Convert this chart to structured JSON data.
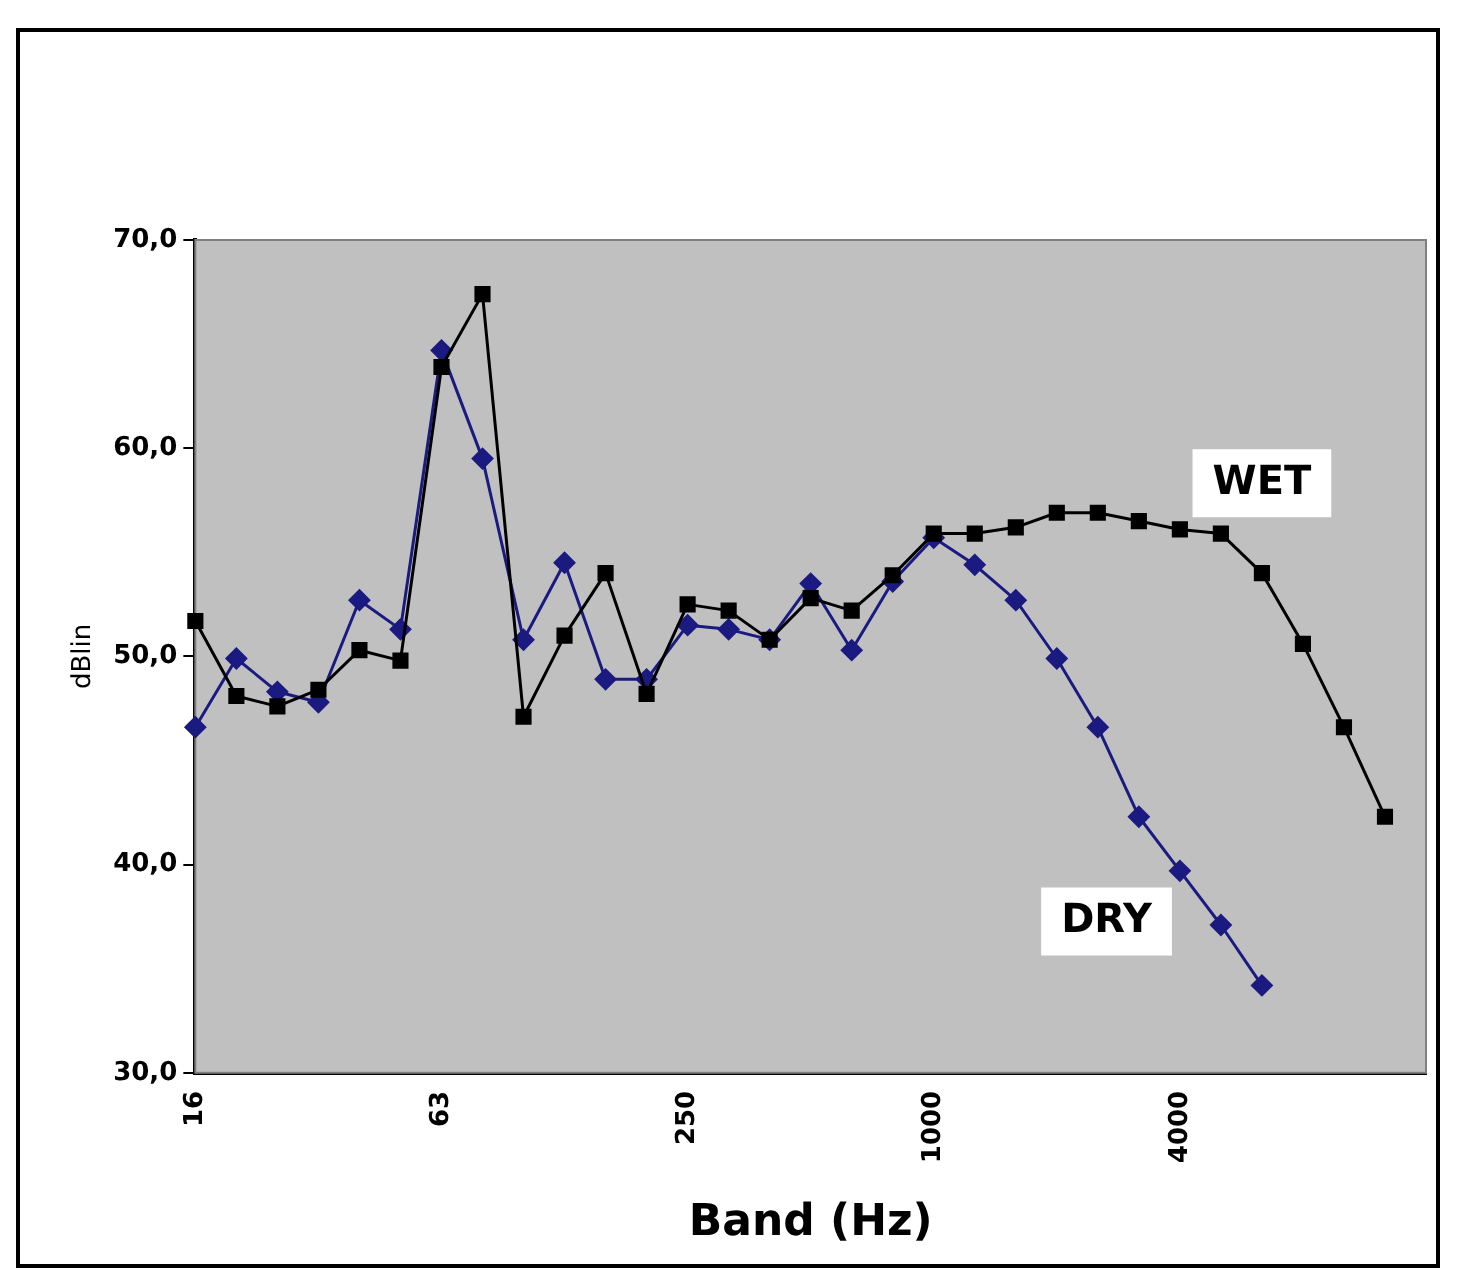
{
  "chart_data": {
    "type": "line",
    "xlabel": "Band (Hz)",
    "ylabel": "dBlin",
    "categories": [
      "16",
      null,
      null,
      null,
      null,
      null,
      "63",
      null,
      null,
      null,
      null,
      null,
      "250",
      null,
      null,
      null,
      null,
      null,
      "1000",
      null,
      null,
      null,
      null,
      null,
      "4000",
      null,
      null,
      null,
      null,
      null,
      null
    ],
    "ylim": [
      30,
      70
    ],
    "yticks": [
      {
        "value": 30,
        "label": "30,0"
      },
      {
        "value": 40,
        "label": "40,0"
      },
      {
        "value": 50,
        "label": "50,0"
      },
      {
        "value": 60,
        "label": "60,0"
      },
      {
        "value": 70,
        "label": "70,0"
      }
    ],
    "grid": false,
    "legend": false,
    "line_style": "solid",
    "series": [
      {
        "name": "WET",
        "color": "#000000",
        "marker": "square",
        "values": [
          51.7,
          48.1,
          47.6,
          48.4,
          50.3,
          49.8,
          63.9,
          67.4,
          47.1,
          51.0,
          54.0,
          48.2,
          52.5,
          52.2,
          50.8,
          52.8,
          52.2,
          53.9,
          55.9,
          55.9,
          56.2,
          56.9,
          56.9,
          56.5,
          56.1,
          55.9,
          54.0,
          50.6,
          46.6,
          42.3,
          null
        ]
      },
      {
        "name": "DRY",
        "color": "#1a1a80",
        "marker": "diamond",
        "values": [
          46.6,
          49.9,
          48.3,
          47.8,
          52.7,
          51.3,
          64.7,
          59.5,
          50.8,
          54.5,
          48.9,
          48.9,
          51.5,
          51.3,
          50.8,
          53.5,
          50.3,
          53.6,
          55.7,
          54.4,
          52.7,
          49.9,
          46.6,
          42.3,
          39.7,
          37.1,
          34.2,
          null,
          null,
          null,
          null
        ]
      }
    ]
  }
}
